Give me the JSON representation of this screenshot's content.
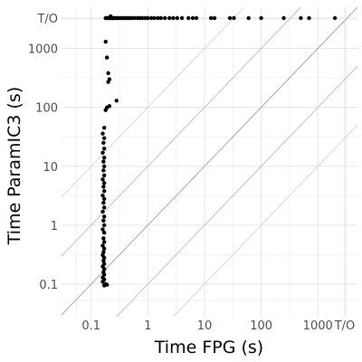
{
  "chart_data": {
    "type": "scatter",
    "title": "",
    "xlabel": "Time FPG (s)",
    "ylabel": "Time ParamIC3 (s)",
    "scale": "log10",
    "timeout_label": "T/O",
    "xlim": [
      0.03,
      5000
    ],
    "ylim": [
      0.028,
      5000
    ],
    "x_ticks": [
      {
        "value": 0.1,
        "label": "0.1"
      },
      {
        "value": 1,
        "label": "1"
      },
      {
        "value": 10,
        "label": "10"
      },
      {
        "value": 100,
        "label": "100"
      },
      {
        "value": 1000,
        "label": "1000"
      },
      {
        "value": "T/O",
        "label": "T/O"
      }
    ],
    "y_ticks": [
      {
        "value": 0.1,
        "label": "0.1"
      },
      {
        "value": 1,
        "label": "1"
      },
      {
        "value": 10,
        "label": "10"
      },
      {
        "value": 100,
        "label": "100"
      },
      {
        "value": 1000,
        "label": "1000"
      },
      {
        "value": "T/O",
        "label": "T/O"
      }
    ],
    "reference_lines": [
      {
        "ratio": 1,
        "color": "#a6a6a6"
      },
      {
        "ratio": 10,
        "color": "#c2c2c2"
      },
      {
        "ratio": 0.1,
        "color": "#c2c2c2"
      },
      {
        "ratio": 100,
        "color": "#d8d8d8"
      },
      {
        "ratio": 0.01,
        "color": "#d8d8d8"
      }
    ],
    "grid": true,
    "point_color": "#000000",
    "points": [
      {
        "x": 0.17,
        "y": 0.095
      },
      {
        "x": 0.19,
        "y": 0.098
      },
      {
        "x": 0.18,
        "y": 0.1
      },
      {
        "x": 0.16,
        "y": 0.11
      },
      {
        "x": 0.17,
        "y": 0.12
      },
      {
        "x": 0.16,
        "y": 0.13
      },
      {
        "x": 0.17,
        "y": 0.145
      },
      {
        "x": 0.165,
        "y": 0.16
      },
      {
        "x": 0.17,
        "y": 0.18
      },
      {
        "x": 0.16,
        "y": 0.2
      },
      {
        "x": 0.17,
        "y": 0.22
      },
      {
        "x": 0.165,
        "y": 0.25
      },
      {
        "x": 0.17,
        "y": 0.28
      },
      {
        "x": 0.16,
        "y": 0.31
      },
      {
        "x": 0.165,
        "y": 0.35
      },
      {
        "x": 0.17,
        "y": 0.4
      },
      {
        "x": 0.16,
        "y": 0.45
      },
      {
        "x": 0.17,
        "y": 0.52
      },
      {
        "x": 0.165,
        "y": 0.6
      },
      {
        "x": 0.17,
        "y": 0.75
      },
      {
        "x": 0.16,
        "y": 0.85
      },
      {
        "x": 0.17,
        "y": 1.0
      },
      {
        "x": 0.165,
        "y": 1.2
      },
      {
        "x": 0.17,
        "y": 1.4
      },
      {
        "x": 0.16,
        "y": 1.7
      },
      {
        "x": 0.17,
        "y": 2.0
      },
      {
        "x": 0.165,
        "y": 2.4
      },
      {
        "x": 0.17,
        "y": 2.8
      },
      {
        "x": 0.16,
        "y": 3.2
      },
      {
        "x": 0.17,
        "y": 3.8
      },
      {
        "x": 0.165,
        "y": 4.5
      },
      {
        "x": 0.17,
        "y": 5.2
      },
      {
        "x": 0.16,
        "y": 6.0
      },
      {
        "x": 0.17,
        "y": 7.0
      },
      {
        "x": 0.165,
        "y": 8.5
      },
      {
        "x": 0.17,
        "y": 10
      },
      {
        "x": 0.165,
        "y": 12
      },
      {
        "x": 0.17,
        "y": 14
      },
      {
        "x": 0.16,
        "y": 17
      },
      {
        "x": 0.17,
        "y": 20
      },
      {
        "x": 0.165,
        "y": 25
      },
      {
        "x": 0.17,
        "y": 30
      },
      {
        "x": 0.16,
        "y": 36
      },
      {
        "x": 0.17,
        "y": 45
      },
      {
        "x": 0.18,
        "y": 90
      },
      {
        "x": 0.19,
        "y": 100
      },
      {
        "x": 0.21,
        "y": 105
      },
      {
        "x": 0.28,
        "y": 130
      },
      {
        "x": 0.2,
        "y": 270
      },
      {
        "x": 0.21,
        "y": 300
      },
      {
        "x": 0.2,
        "y": 380
      },
      {
        "x": 0.19,
        "y": 700
      },
      {
        "x": 0.18,
        "y": 1300
      },
      {
        "x": 0.18,
        "y": "T/O"
      },
      {
        "x": 0.19,
        "y": "T/O"
      },
      {
        "x": 0.2,
        "y": "T/O"
      },
      {
        "x": 0.21,
        "y": "T/O"
      },
      {
        "x": 0.22,
        "y": "T/O"
      },
      {
        "x": 0.23,
        "y": "T/O"
      },
      {
        "x": 0.24,
        "y": "T/O"
      },
      {
        "x": 0.25,
        "y": "T/O"
      },
      {
        "x": 0.27,
        "y": "T/O"
      },
      {
        "x": 0.29,
        "y": "T/O"
      },
      {
        "x": 0.31,
        "y": "T/O"
      },
      {
        "x": 0.34,
        "y": "T/O"
      },
      {
        "x": 0.37,
        "y": "T/O"
      },
      {
        "x": 0.4,
        "y": "T/O"
      },
      {
        "x": 0.44,
        "y": "T/O"
      },
      {
        "x": 0.48,
        "y": "T/O"
      },
      {
        "x": 0.52,
        "y": "T/O"
      },
      {
        "x": 0.58,
        "y": "T/O"
      },
      {
        "x": 0.65,
        "y": "T/O"
      },
      {
        "x": 0.72,
        "y": "T/O"
      },
      {
        "x": 0.8,
        "y": "T/O"
      },
      {
        "x": 0.9,
        "y": "T/O"
      },
      {
        "x": 1.0,
        "y": "T/O"
      },
      {
        "x": 1.15,
        "y": "T/O"
      },
      {
        "x": 1.3,
        "y": "T/O"
      },
      {
        "x": 1.5,
        "y": "T/O"
      },
      {
        "x": 1.7,
        "y": "T/O"
      },
      {
        "x": 2.0,
        "y": "T/O"
      },
      {
        "x": 2.4,
        "y": "T/O"
      },
      {
        "x": 2.8,
        "y": "T/O"
      },
      {
        "x": 3.3,
        "y": "T/O"
      },
      {
        "x": 4.0,
        "y": "T/O"
      },
      {
        "x": 5.2,
        "y": "T/O"
      },
      {
        "x": 6.2,
        "y": "T/O"
      },
      {
        "x": 7.2,
        "y": "T/O"
      },
      {
        "x": 13,
        "y": "T/O"
      },
      {
        "x": 15,
        "y": "T/O"
      },
      {
        "x": 28,
        "y": "T/O"
      },
      {
        "x": 33,
        "y": "T/O"
      },
      {
        "x": 60,
        "y": "T/O"
      },
      {
        "x": 100,
        "y": "T/O"
      },
      {
        "x": 250,
        "y": "T/O"
      },
      {
        "x": 500,
        "y": "T/O"
      },
      {
        "x": 700,
        "y": "T/O"
      },
      {
        "x": 2000,
        "y": "T/O"
      },
      {
        "x": 0.22,
        "y": 3500
      }
    ]
  }
}
